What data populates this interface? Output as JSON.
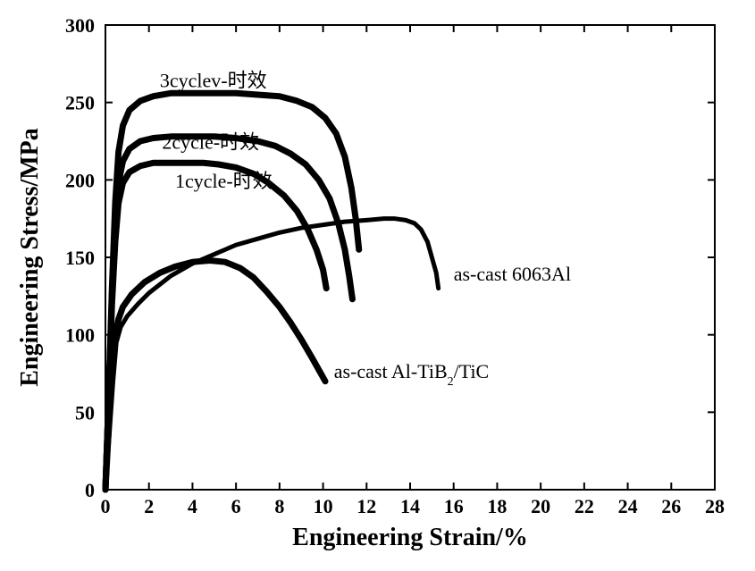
{
  "chart": {
    "type": "line",
    "background_color": "#ffffff",
    "line_color": "#000000",
    "axis_color": "#000000",
    "xlabel": "Engineering Strain/%",
    "ylabel": "Engineering Stress/MPa",
    "label_fontsize": 28,
    "tick_fontsize": 22,
    "xlim": [
      0,
      28
    ],
    "ylim": [
      0,
      300
    ],
    "xticks": [
      0,
      2,
      4,
      6,
      8,
      10,
      12,
      14,
      16,
      18,
      20,
      22,
      24,
      26,
      28
    ],
    "yticks": [
      0,
      50,
      100,
      150,
      200,
      250,
      300
    ],
    "line_width_main": 7,
    "line_width_thin": 5,
    "series": {
      "as_cast_6063Al": {
        "label": "as-cast 6063Al",
        "label_pos": {
          "x": 16.0,
          "y": 135
        },
        "line_width": 5,
        "points": [
          [
            0.0,
            0
          ],
          [
            0.2,
            40
          ],
          [
            0.35,
            70
          ],
          [
            0.5,
            95
          ],
          [
            0.7,
            105
          ],
          [
            1.0,
            112
          ],
          [
            1.5,
            120
          ],
          [
            2.0,
            127
          ],
          [
            3.0,
            138
          ],
          [
            4.0,
            146
          ],
          [
            5.0,
            152
          ],
          [
            6.0,
            158
          ],
          [
            7.0,
            162
          ],
          [
            8.0,
            166
          ],
          [
            9.0,
            169
          ],
          [
            10.0,
            171
          ],
          [
            11.0,
            173
          ],
          [
            12.0,
            174
          ],
          [
            12.8,
            175
          ],
          [
            13.3,
            175
          ],
          [
            13.8,
            174
          ],
          [
            14.2,
            172
          ],
          [
            14.5,
            168
          ],
          [
            14.8,
            160
          ],
          [
            15.0,
            150
          ],
          [
            15.2,
            140
          ],
          [
            15.3,
            130
          ]
        ]
      },
      "as_cast_AlTiB2TiC": {
        "label_prefix": "as-cast Al-TiB",
        "label_sub": "2",
        "label_suffix": "/TiC",
        "label_pos": {
          "x": 10.5,
          "y": 72
        },
        "line_width": 7,
        "points": [
          [
            0.0,
            0
          ],
          [
            0.15,
            40
          ],
          [
            0.3,
            75
          ],
          [
            0.45,
            100
          ],
          [
            0.6,
            110
          ],
          [
            0.8,
            118
          ],
          [
            1.2,
            126
          ],
          [
            1.8,
            134
          ],
          [
            2.5,
            140
          ],
          [
            3.2,
            144
          ],
          [
            4.0,
            147
          ],
          [
            4.8,
            148
          ],
          [
            5.5,
            147
          ],
          [
            6.2,
            143
          ],
          [
            6.8,
            137
          ],
          [
            7.4,
            128
          ],
          [
            8.0,
            118
          ],
          [
            8.5,
            108
          ],
          [
            9.0,
            97
          ],
          [
            9.5,
            85
          ],
          [
            9.9,
            75
          ],
          [
            10.1,
            70
          ]
        ]
      },
      "cycle1": {
        "label": "1cycle-时效",
        "label_pos": {
          "x": 3.2,
          "y": 195
        },
        "line_width": 7,
        "points": [
          [
            0.0,
            0
          ],
          [
            0.15,
            60
          ],
          [
            0.3,
            120
          ],
          [
            0.45,
            160
          ],
          [
            0.6,
            185
          ],
          [
            0.8,
            198
          ],
          [
            1.1,
            205
          ],
          [
            1.6,
            209
          ],
          [
            2.2,
            211
          ],
          [
            3.0,
            211
          ],
          [
            3.8,
            211
          ],
          [
            4.5,
            211
          ],
          [
            5.2,
            210
          ],
          [
            6.0,
            208
          ],
          [
            6.8,
            204
          ],
          [
            7.5,
            198
          ],
          [
            8.2,
            190
          ],
          [
            8.8,
            180
          ],
          [
            9.3,
            168
          ],
          [
            9.7,
            155
          ],
          [
            10.0,
            142
          ],
          [
            10.15,
            130
          ]
        ]
      },
      "cycle2": {
        "label": "2cycle-时效",
        "label_pos": {
          "x": 2.6,
          "y": 220
        },
        "line_width": 7,
        "points": [
          [
            0.0,
            0
          ],
          [
            0.15,
            60
          ],
          [
            0.3,
            125
          ],
          [
            0.45,
            170
          ],
          [
            0.6,
            198
          ],
          [
            0.8,
            212
          ],
          [
            1.1,
            220
          ],
          [
            1.6,
            225
          ],
          [
            2.2,
            227
          ],
          [
            3.0,
            228
          ],
          [
            4.0,
            228
          ],
          [
            5.0,
            228
          ],
          [
            6.0,
            227
          ],
          [
            7.0,
            225
          ],
          [
            7.8,
            222
          ],
          [
            8.5,
            217
          ],
          [
            9.2,
            210
          ],
          [
            9.8,
            200
          ],
          [
            10.3,
            188
          ],
          [
            10.7,
            172
          ],
          [
            11.0,
            155
          ],
          [
            11.2,
            138
          ],
          [
            11.35,
            123
          ]
        ]
      },
      "cycle3": {
        "label": "3cyclev-时效",
        "label_pos": {
          "x": 2.5,
          "y": 260
        },
        "line_width": 7,
        "points": [
          [
            0.0,
            0
          ],
          [
            0.15,
            60
          ],
          [
            0.3,
            130
          ],
          [
            0.45,
            185
          ],
          [
            0.6,
            218
          ],
          [
            0.8,
            235
          ],
          [
            1.1,
            245
          ],
          [
            1.6,
            251
          ],
          [
            2.2,
            254
          ],
          [
            3.0,
            256
          ],
          [
            4.0,
            256
          ],
          [
            5.0,
            256
          ],
          [
            6.0,
            256
          ],
          [
            7.0,
            255
          ],
          [
            8.0,
            254
          ],
          [
            8.8,
            251
          ],
          [
            9.5,
            247
          ],
          [
            10.1,
            240
          ],
          [
            10.6,
            230
          ],
          [
            11.0,
            215
          ],
          [
            11.3,
            195
          ],
          [
            11.5,
            175
          ],
          [
            11.65,
            155
          ]
        ]
      }
    }
  }
}
